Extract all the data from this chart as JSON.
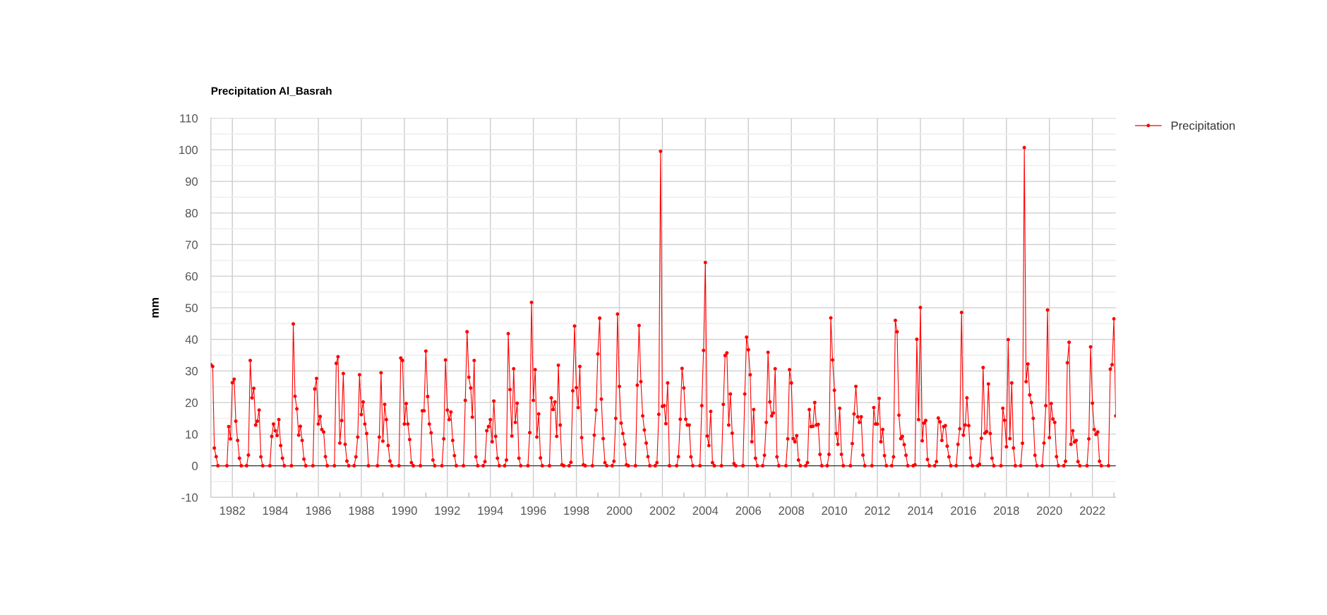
{
  "chart_data": {
    "type": "line",
    "title": "Precipitation Al_Basrah",
    "ylabel": "mm",
    "x": [
      "1981-01",
      "1981-02",
      "1981-03",
      "1981-04",
      "1981-05",
      "1981-10",
      "1981-11",
      "1981-12",
      "1982-01",
      "1982-02",
      "1982-03",
      "1982-04",
      "1982-05",
      "1982-06",
      "1982-09",
      "1982-10",
      "1982-11",
      "1982-12",
      "1983-01",
      "1983-02",
      "1983-03",
      "1983-04",
      "1983-05",
      "1983-06",
      "1983-10",
      "1983-11",
      "1983-12",
      "1984-01",
      "1984-02",
      "1984-03",
      "1984-04",
      "1984-05",
      "1984-06",
      "1984-10",
      "1984-11",
      "1984-12",
      "1985-01",
      "1985-02",
      "1985-03",
      "1985-04",
      "1985-05",
      "1985-06",
      "1985-10",
      "1985-11",
      "1985-12",
      "1986-01",
      "1986-02",
      "1986-03",
      "1986-04",
      "1986-05",
      "1986-06",
      "1986-10",
      "1986-11",
      "1986-12",
      "1987-01",
      "1987-02",
      "1987-03",
      "1987-04",
      "1987-05",
      "1987-06",
      "1987-09",
      "1987-10",
      "1987-11",
      "1987-12",
      "1988-01",
      "1988-02",
      "1988-03",
      "1988-04",
      "1988-05",
      "1988-10",
      "1988-11",
      "1988-12",
      "1989-01",
      "1989-02",
      "1989-03",
      "1989-04",
      "1989-05",
      "1989-06",
      "1989-10",
      "1989-11",
      "1989-12",
      "1990-01",
      "1990-02",
      "1990-03",
      "1990-04",
      "1990-05",
      "1990-06",
      "1990-10",
      "1990-11",
      "1990-12",
      "1991-01",
      "1991-02",
      "1991-03",
      "1991-04",
      "1991-05",
      "1991-06",
      "1991-10",
      "1991-11",
      "1991-12",
      "1992-01",
      "1992-02",
      "1992-03",
      "1992-04",
      "1992-05",
      "1992-06",
      "1992-10",
      "1992-11",
      "1992-12",
      "1993-01",
      "1993-02",
      "1993-03",
      "1993-04",
      "1993-05",
      "1993-06",
      "1993-09",
      "1993-10",
      "1993-11",
      "1993-12",
      "1994-01",
      "1994-02",
      "1994-03",
      "1994-04",
      "1994-05",
      "1994-06",
      "1994-09",
      "1994-10",
      "1994-11",
      "1994-12",
      "1995-01",
      "1995-02",
      "1995-03",
      "1995-04",
      "1995-05",
      "1995-06",
      "1995-10",
      "1995-11",
      "1995-12",
      "1996-01",
      "1996-02",
      "1996-03",
      "1996-04",
      "1996-05",
      "1996-06",
      "1996-10",
      "1996-11",
      "1996-12",
      "1997-01",
      "1997-02",
      "1997-03",
      "1997-04",
      "1997-05",
      "1997-06",
      "1997-09",
      "1997-10",
      "1997-11",
      "1997-12",
      "1998-01",
      "1998-02",
      "1998-03",
      "1998-04",
      "1998-05",
      "1998-06",
      "1998-10",
      "1998-11",
      "1998-12",
      "1999-01",
      "1999-02",
      "1999-03",
      "1999-04",
      "1999-05",
      "1999-06",
      "1999-09",
      "1999-10",
      "1999-11",
      "1999-12",
      "2000-01",
      "2000-02",
      "2000-03",
      "2000-04",
      "2000-05",
      "2000-06",
      "2000-10",
      "2000-11",
      "2000-12",
      "2001-01",
      "2001-02",
      "2001-03",
      "2001-04",
      "2001-05",
      "2001-06",
      "2001-09",
      "2001-10",
      "2001-11",
      "2001-12",
      "2002-01",
      "2002-02",
      "2002-03",
      "2002-04",
      "2002-05",
      "2002-09",
      "2002-10",
      "2002-11",
      "2002-12",
      "2003-01",
      "2003-02",
      "2003-03",
      "2003-04",
      "2003-05",
      "2003-06",
      "2003-10",
      "2003-11",
      "2003-12",
      "2004-01",
      "2004-02",
      "2004-03",
      "2004-04",
      "2004-05",
      "2004-06",
      "2004-10",
      "2004-11",
      "2004-12",
      "2005-01",
      "2005-02",
      "2005-03",
      "2005-04",
      "2005-05",
      "2005-06",
      "2005-10",
      "2005-11",
      "2005-12",
      "2006-01",
      "2006-02",
      "2006-03",
      "2006-04",
      "2006-05",
      "2006-06",
      "2006-09",
      "2006-10",
      "2006-11",
      "2006-12",
      "2007-01",
      "2007-02",
      "2007-03",
      "2007-04",
      "2007-05",
      "2007-06",
      "2007-10",
      "2007-11",
      "2007-12",
      "2008-01",
      "2008-02",
      "2008-03",
      "2008-04",
      "2008-05",
      "2008-06",
      "2008-09",
      "2008-10",
      "2008-11",
      "2008-12",
      "2009-01",
      "2009-02",
      "2009-03",
      "2009-04",
      "2009-05",
      "2009-06",
      "2009-09",
      "2009-10",
      "2009-11",
      "2009-12",
      "2010-01",
      "2010-02",
      "2010-03",
      "2010-04",
      "2010-05",
      "2010-06",
      "2010-10",
      "2010-11",
      "2010-12",
      "2011-01",
      "2011-02",
      "2011-03",
      "2011-04",
      "2011-05",
      "2011-06",
      "2011-10",
      "2011-11",
      "2011-12",
      "2012-01",
      "2012-02",
      "2012-03",
      "2012-04",
      "2012-05",
      "2012-06",
      "2012-09",
      "2012-10",
      "2012-11",
      "2012-12",
      "2013-01",
      "2013-02",
      "2013-03",
      "2013-04",
      "2013-05",
      "2013-06",
      "2013-09",
      "2013-10",
      "2013-11",
      "2013-12",
      "2014-01",
      "2014-02",
      "2014-03",
      "2014-04",
      "2014-05",
      "2014-06",
      "2014-09",
      "2014-10",
      "2014-11",
      "2014-12",
      "2015-01",
      "2015-02",
      "2015-03",
      "2015-04",
      "2015-05",
      "2015-06",
      "2015-09",
      "2015-10",
      "2015-11",
      "2015-12",
      "2016-01",
      "2016-02",
      "2016-03",
      "2016-04",
      "2016-05",
      "2016-06",
      "2016-09",
      "2016-10",
      "2016-11",
      "2016-12",
      "2017-01",
      "2017-02",
      "2017-03",
      "2017-04",
      "2017-05",
      "2017-06",
      "2017-10",
      "2017-11",
      "2017-12",
      "2018-01",
      "2018-02",
      "2018-03",
      "2018-04",
      "2018-05",
      "2018-06",
      "2018-09",
      "2018-10",
      "2018-11",
      "2018-12",
      "2019-01",
      "2019-02",
      "2019-03",
      "2019-04",
      "2019-05",
      "2019-06",
      "2019-09",
      "2019-10",
      "2019-11",
      "2019-12",
      "2020-01",
      "2020-02",
      "2020-03",
      "2020-04",
      "2020-05",
      "2020-06",
      "2020-09",
      "2020-10",
      "2020-11",
      "2020-12",
      "2021-01",
      "2021-02",
      "2021-03",
      "2021-04",
      "2021-05",
      "2021-06",
      "2021-10",
      "2021-11",
      "2021-12",
      "2022-01",
      "2022-02",
      "2022-03",
      "2022-04",
      "2022-05",
      "2022-06",
      "2022-10",
      "2022-11",
      "2022-12",
      "2023-01",
      "2023-02"
    ],
    "series": [
      {
        "name": "Precipitation",
        "color": "#ff0000",
        "values": [
          32.0,
          31.4,
          5.6,
          2.9,
          0,
          0,
          12.4,
          8.5,
          26.3,
          27.4,
          14.1,
          8.0,
          2.4,
          0,
          0,
          3.4,
          33.3,
          21.5,
          24.5,
          12.9,
          14.1,
          17.6,
          2.8,
          0,
          0,
          9.3,
          13.2,
          11.1,
          9.6,
          14.6,
          6.4,
          2.4,
          0,
          0,
          44.9,
          22.0,
          18.0,
          9.7,
          12.5,
          8.0,
          2.1,
          0,
          0,
          24.3,
          27.6,
          13.2,
          15.6,
          11.5,
          10.7,
          2.9,
          0,
          0,
          32.4,
          34.5,
          7.2,
          14.3,
          29.2,
          6.8,
          1.5,
          0,
          0,
          2.8,
          9.1,
          28.8,
          16.2,
          20.2,
          13.2,
          10.2,
          0,
          0,
          9.1,
          29.4,
          7.8,
          19.4,
          14.6,
          6.4,
          1.5,
          0,
          0,
          34.1,
          33.3,
          13.2,
          19.7,
          13.2,
          8.3,
          1.0,
          0,
          0,
          17.4,
          17.4,
          36.3,
          21.9,
          13.2,
          10.4,
          1.8,
          0,
          0,
          8.5,
          33.5,
          17.6,
          14.6,
          17.0,
          8.0,
          3.2,
          0,
          0,
          20.7,
          42.4,
          28.0,
          24.6,
          15.4,
          33.3,
          2.8,
          0,
          0,
          1.3,
          11.1,
          12.4,
          14.6,
          7.6,
          20.5,
          9.3,
          2.4,
          0,
          0,
          1.8,
          41.8,
          24.1,
          9.4,
          30.7,
          13.7,
          19.8,
          2.4,
          0,
          0,
          10.5,
          51.7,
          20.7,
          30.4,
          9.1,
          16.4,
          2.5,
          0,
          0,
          21.5,
          17.8,
          20.2,
          9.3,
          31.8,
          12.9,
          0.3,
          0,
          0,
          1.1,
          23.7,
          44.2,
          24.7,
          18.4,
          31.4,
          8.9,
          0.3,
          0,
          0,
          9.7,
          17.6,
          35.4,
          46.7,
          21.1,
          8.6,
          1.0,
          0,
          0,
          1.4,
          15.0,
          48.0,
          25.1,
          13.5,
          10.2,
          6.8,
          0.3,
          0,
          0,
          25.5,
          44.4,
          26.6,
          15.8,
          11.3,
          7.2,
          2.9,
          0,
          0,
          1.0,
          16.3,
          99.5,
          18.8,
          19.0,
          13.3,
          26.2,
          0,
          0,
          2.9,
          14.7,
          30.8,
          24.6,
          14.7,
          12.9,
          12.9,
          2.8,
          0,
          0,
          19.0,
          36.5,
          64.3,
          9.4,
          6.4,
          17.2,
          1.0,
          0,
          0,
          19.4,
          34.9,
          35.7,
          12.9,
          22.7,
          10.3,
          0.7,
          0,
          0,
          22.7,
          40.7,
          36.7,
          28.8,
          7.6,
          17.8,
          2.4,
          0,
          0,
          3.3,
          13.7,
          35.9,
          20.2,
          15.8,
          16.7,
          30.7,
          2.8,
          0,
          0,
          8.5,
          30.4,
          26.2,
          8.6,
          7.6,
          9.5,
          1.8,
          0,
          0,
          1.0,
          17.8,
          12.4,
          12.5,
          20.0,
          12.9,
          13.1,
          3.6,
          0,
          0,
          3.6,
          46.8,
          33.5,
          23.9,
          10.2,
          6.8,
          18.2,
          3.6,
          0,
          0,
          7.0,
          16.4,
          25.1,
          15.5,
          13.7,
          15.5,
          3.4,
          0,
          0,
          18.4,
          13.2,
          13.2,
          21.3,
          7.6,
          11.5,
          3.2,
          0,
          0,
          2.8,
          46.0,
          42.4,
          16.0,
          8.6,
          9.3,
          6.7,
          3.3,
          0,
          0,
          0.3,
          40.0,
          14.6,
          50.1,
          7.9,
          13.5,
          14.3,
          2.0,
          0,
          0,
          1.3,
          15.1,
          13.9,
          8.0,
          12.4,
          12.7,
          6.2,
          2.8,
          0,
          0,
          6.8,
          11.7,
          48.5,
          9.7,
          12.9,
          21.5,
          12.7,
          2.5,
          0,
          0,
          0.5,
          8.7,
          31.1,
          10.3,
          10.8,
          25.9,
          10.2,
          2.4,
          0,
          0,
          18.2,
          14.4,
          6.0,
          39.9,
          8.6,
          26.2,
          5.6,
          0,
          0,
          7.1,
          100.7,
          26.6,
          32.2,
          22.4,
          20.0,
          15.0,
          3.3,
          0,
          0,
          7.2,
          19.0,
          49.3,
          8.9,
          19.7,
          14.8,
          13.7,
          2.9,
          0,
          0,
          1.4,
          32.6,
          39.1,
          6.8,
          11.1,
          7.5,
          8.0,
          1.3,
          0,
          0,
          8.5,
          37.6,
          19.8,
          11.5,
          9.9,
          10.7,
          1.4,
          0,
          0,
          30.6,
          32.0,
          46.5,
          15.8
        ]
      }
    ],
    "xlim": [
      "1981-01",
      "2023-02"
    ],
    "xticks": [
      "1982",
      {
        "value": "1983",
        "label": null
      },
      "1984",
      {
        "value": "1985",
        "label": null
      },
      "1986",
      {
        "value": "1987",
        "label": null
      },
      "1988",
      {
        "value": "1989",
        "label": null
      },
      "1990",
      {
        "value": "1991",
        "label": null
      },
      "1992",
      {
        "value": "1993",
        "label": null
      },
      "1994",
      {
        "value": "1995",
        "label": null
      },
      "1996",
      {
        "value": "1997",
        "label": null
      },
      "1998",
      {
        "value": "1999",
        "label": null
      },
      "2000",
      {
        "value": "2001",
        "label": null
      },
      "2002",
      {
        "value": "2003",
        "label": null
      },
      "2004",
      {
        "value": "2005",
        "label": null
      },
      "2006",
      {
        "value": "2007",
        "label": null
      },
      "2008",
      {
        "value": "2009",
        "label": null
      },
      "2010",
      {
        "value": "2011",
        "label": null
      },
      "2012",
      {
        "value": "2013",
        "label": null
      },
      "2014",
      {
        "value": "2015",
        "label": null
      },
      "2016",
      {
        "value": "2017",
        "label": null
      },
      "2018",
      {
        "value": "2019",
        "label": null
      },
      "2020",
      {
        "value": "2021",
        "label": null
      },
      "2022",
      {
        "value": "2023",
        "label": null
      }
    ],
    "ylim": [
      -10,
      110
    ],
    "yticks": [
      -10,
      {
        "value": -5,
        "label": null
      },
      0,
      {
        "value": 5,
        "label": null
      },
      10,
      {
        "value": 15,
        "label": null
      },
      20,
      {
        "value": 25,
        "label": null
      },
      30,
      {
        "value": 35,
        "label": null
      },
      40,
      {
        "value": 45,
        "label": null
      },
      50,
      {
        "value": 55,
        "label": null
      },
      60,
      {
        "value": 65,
        "label": null
      },
      70,
      {
        "value": 75,
        "label": null
      },
      80,
      {
        "value": 85,
        "label": null
      },
      90,
      {
        "value": 95,
        "label": null
      },
      100,
      {
        "value": 105,
        "label": null
      },
      110
    ],
    "ref_lines": [
      {
        "axis": "y",
        "value": 0,
        "color": "#333333"
      }
    ],
    "grid": true,
    "legend": "top right",
    "marker": "circle"
  }
}
